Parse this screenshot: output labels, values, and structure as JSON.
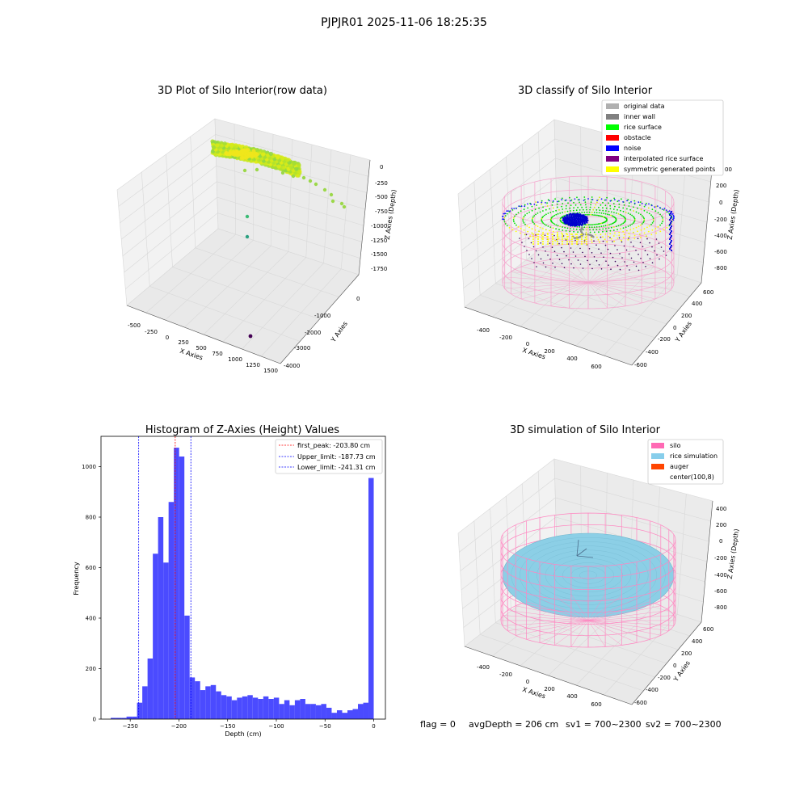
{
  "figure": {
    "suptitle": "PJPJR01 2025-11-06 18:25:35",
    "status": {
      "flag": "flag = 0",
      "avg_depth": "avgDepth = 206 cm",
      "sv1": "sv1 = 700~2300",
      "sv2": "sv2 = 700~2300"
    }
  },
  "colors": {
    "hist_bar": "#4b4bff",
    "peak_line": "#ff0000",
    "limit_line": "#0000ff",
    "silo_wire": "#ff69b4",
    "rice_sim": "#87ceeb",
    "auger": "#ff4500",
    "rice_surface": "#00ff00",
    "noise": "#0000ff",
    "obstacle": "#ff0000",
    "inner_wall": "#808080",
    "original_data": "#b0b0b0",
    "interpolated": "#800080",
    "symmetric": "#ffff00"
  },
  "chart_data": [
    {
      "type": "scatter",
      "projection": "3d",
      "title": "3D Plot of Silo Interior(row data)",
      "xlabel": "X Axies",
      "ylabel": "Y Axies",
      "zlabel": "Z Axies (Depth)",
      "xticks": [
        "-500",
        "-250",
        "0",
        "250",
        "500",
        "750",
        "1000",
        "1250",
        "1500"
      ],
      "yticks": [
        "0",
        "-1000",
        "-2000",
        "-3000",
        "-4000"
      ],
      "zticks": [
        "0",
        "-250",
        "-500",
        "-750",
        "-1000",
        "-1250",
        "-1500",
        "-1750"
      ],
      "outlier_points": [
        {
          "x": 700,
          "y": -700,
          "z": -260
        },
        {
          "x": 800,
          "y": -800,
          "z": -340
        },
        {
          "x": 900,
          "y": -900,
          "z": -430
        },
        {
          "x": 1000,
          "y": -950,
          "z": -520
        },
        {
          "x": 1100,
          "y": -1000,
          "z": -620
        },
        {
          "x": 1200,
          "y": -1050,
          "z": -720
        },
        {
          "x": 300,
          "y": -1000,
          "z": -1050
        },
        {
          "x": 300,
          "y": -1100,
          "z": -1350
        },
        {
          "x": 1000,
          "y": -3500,
          "z": -1850
        }
      ],
      "grid": true
    },
    {
      "type": "scatter",
      "projection": "3d",
      "title": "3D classify of Silo Interior",
      "xlabel": "X Axies",
      "ylabel": "Y Axies",
      "zlabel": "Z Axies (Depth)",
      "xticks": [
        "-400",
        "-200",
        "0",
        "200",
        "400",
        "600"
      ],
      "yticks": [
        "600",
        "400",
        "200",
        "0",
        "-200",
        "-400",
        "-600"
      ],
      "zticks": [
        "200",
        "0",
        "-200",
        "-400",
        "-600",
        "-800"
      ],
      "ztick_partial": "00",
      "legend": [
        "original data",
        "inner wall",
        "rice surface",
        "obstacle",
        "noise",
        "interpolated rice surface",
        "symmetric generated points"
      ],
      "legend_position": "upper right",
      "grid": true
    },
    {
      "type": "bar",
      "title": "Histogram of Z-Axies (Height) Values",
      "xlabel": "Depth (cm)",
      "ylabel": "Frequency",
      "xlim": [
        -280,
        12
      ],
      "ylim": [
        0,
        1120
      ],
      "xticks": [
        "−250",
        "−200",
        "−150",
        "−100",
        "−50",
        "0"
      ],
      "yticks": [
        "0",
        "200",
        "400",
        "600",
        "800",
        "1000"
      ],
      "bin_width": 5.4,
      "bins": [
        [
          -270,
          5
        ],
        [
          -264.6,
          5
        ],
        [
          -259.2,
          5
        ],
        [
          -253.8,
          10
        ],
        [
          -248.4,
          10
        ],
        [
          -243,
          65
        ],
        [
          -237.6,
          130
        ],
        [
          -232.2,
          240
        ],
        [
          -226.8,
          655
        ],
        [
          -221.4,
          800
        ],
        [
          -216,
          620
        ],
        [
          -210.6,
          860
        ],
        [
          -205.2,
          1075
        ],
        [
          -199.8,
          1040
        ],
        [
          -194.4,
          410
        ],
        [
          -189,
          165
        ],
        [
          -183.6,
          150
        ],
        [
          -178.2,
          115
        ],
        [
          -172.8,
          130
        ],
        [
          -167.4,
          135
        ],
        [
          -162,
          110
        ],
        [
          -156.6,
          95
        ],
        [
          -151.2,
          90
        ],
        [
          -145.8,
          75
        ],
        [
          -140.4,
          85
        ],
        [
          -135,
          90
        ],
        [
          -129.6,
          95
        ],
        [
          -124.2,
          85
        ],
        [
          -118.8,
          80
        ],
        [
          -113.4,
          90
        ],
        [
          -108,
          80
        ],
        [
          -102.6,
          85
        ],
        [
          -97.2,
          60
        ],
        [
          -91.8,
          75
        ],
        [
          -86.4,
          55
        ],
        [
          -81,
          75
        ],
        [
          -75.6,
          80
        ],
        [
          -70.2,
          60
        ],
        [
          -64.8,
          60
        ],
        [
          -59.4,
          55
        ],
        [
          -54,
          60
        ],
        [
          -48.6,
          45
        ],
        [
          -43.2,
          25
        ],
        [
          -37.8,
          35
        ],
        [
          -32.4,
          25
        ],
        [
          -27,
          35
        ],
        [
          -21.6,
          40
        ],
        [
          -16.2,
          60
        ],
        [
          -10.8,
          65
        ],
        [
          -5.4,
          955
        ]
      ],
      "vlines": [
        {
          "x": -203.8,
          "label": "first_peak: -203.80 cm",
          "color": "#ff0000"
        },
        {
          "x": -187.73,
          "label": "Upper_limit: -187.73 cm",
          "color": "#0000ff"
        },
        {
          "x": -241.31,
          "label": "Lower_limit: -241.31 cm",
          "color": "#0000ff"
        }
      ],
      "legend_position": "upper right"
    },
    {
      "type": "scatter",
      "projection": "3d",
      "title": "3D simulation of Silo Interior",
      "xlabel": "X Axies",
      "ylabel": "Y Axies",
      "zlabel": "Z Axies (Depth)",
      "xticks": [
        "-400",
        "-200",
        "0",
        "200",
        "400",
        "600"
      ],
      "yticks": [
        "600",
        "400",
        "200",
        "0",
        "-200",
        "-400",
        "-600"
      ],
      "zticks": [
        "400",
        "200",
        "0",
        "-200",
        "-400",
        "-600",
        "-800"
      ],
      "legend": [
        "silo",
        "rice simulation",
        "auger",
        "center(100,8)"
      ],
      "legend_position": "upper right",
      "grid": true
    }
  ]
}
